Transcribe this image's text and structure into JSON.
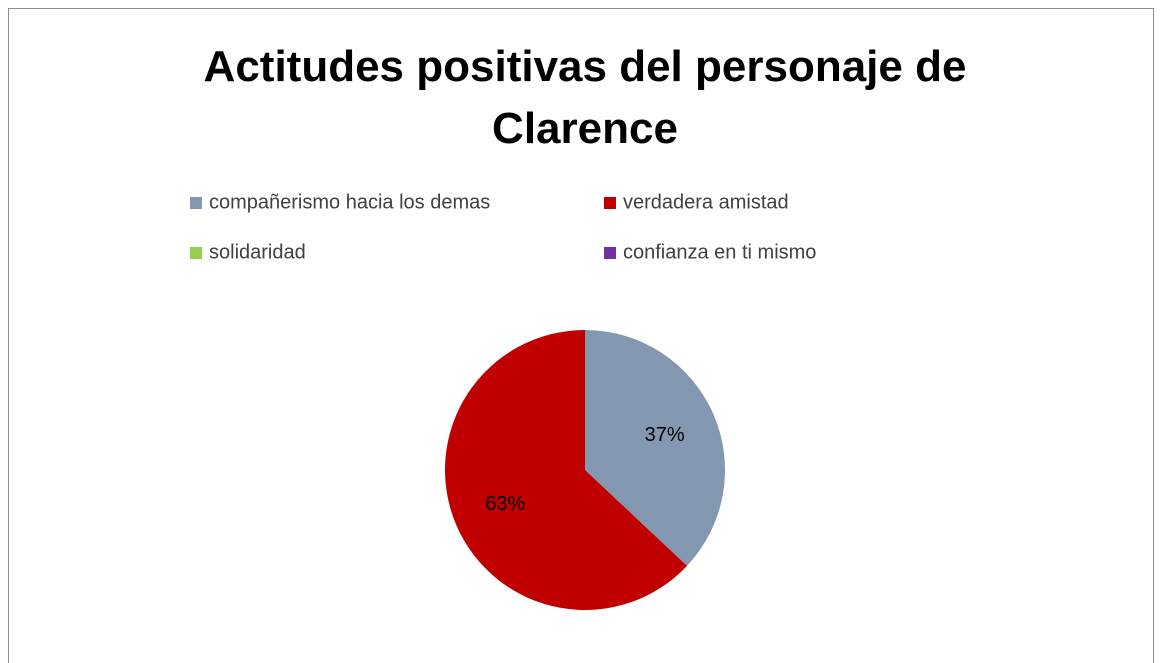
{
  "chart_data": {
    "type": "pie",
    "title": "Actitudes positivas del personaje de Clarence",
    "categories": [
      "compañerismo hacia los demas",
      "verdadera amistad",
      "solidaridad",
      "confianza en ti mismo"
    ],
    "values": [
      37,
      63,
      0,
      0
    ],
    "value_labels": [
      "37%",
      "63%",
      null,
      null
    ],
    "colors": [
      "#8497b0",
      "#c00000",
      "#92d050",
      "#7030a0"
    ],
    "legend": "top"
  }
}
